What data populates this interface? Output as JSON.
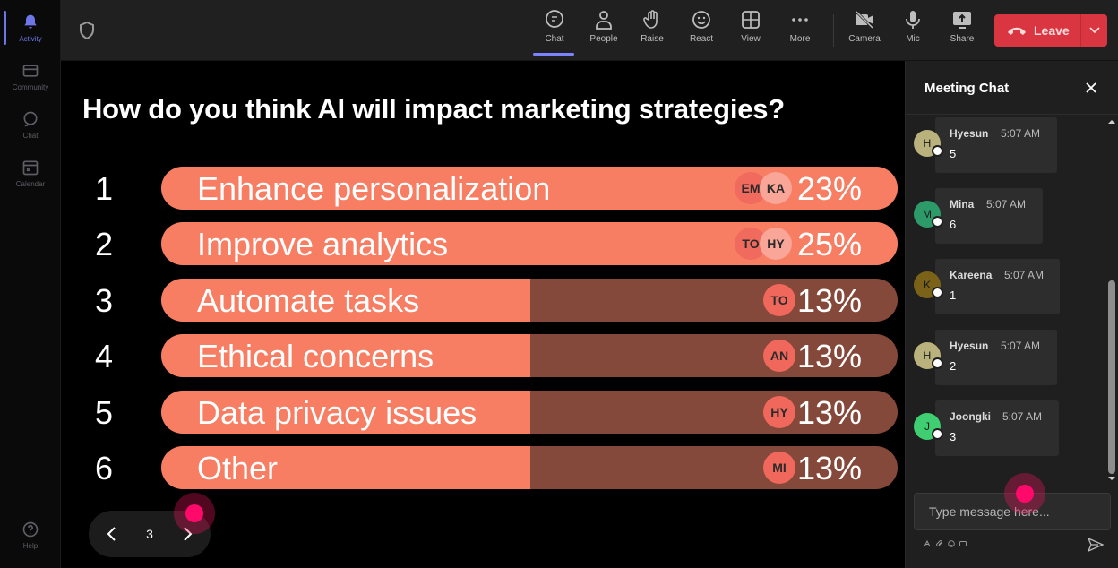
{
  "rail": {
    "items": [
      {
        "label": "Activity",
        "icon": "bell-icon"
      },
      {
        "label": "Community",
        "icon": "community-icon"
      },
      {
        "label": "Chat",
        "icon": "chat-icon"
      },
      {
        "label": "Calendar",
        "icon": "calendar-icon"
      }
    ],
    "help": "Help"
  },
  "toolbar": {
    "chat": "Chat",
    "people": "People",
    "raise": "Raise",
    "react": "React",
    "view": "View",
    "more": "More",
    "camera": "Camera",
    "mic": "Mic",
    "share": "Share",
    "leave": "Leave"
  },
  "poll": {
    "question": "How do you think AI will impact marketing strategies?",
    "options": [
      {
        "num": "1",
        "label": "Enhance personalization",
        "percent": "23%",
        "avatars": [
          "EM",
          "KA"
        ]
      },
      {
        "num": "2",
        "label": "Improve analytics",
        "percent": "25%",
        "avatars": [
          "TO",
          "HY"
        ]
      },
      {
        "num": "3",
        "label": "Automate tasks",
        "percent": "13%",
        "avatars": [
          "TO"
        ]
      },
      {
        "num": "4",
        "label": "Ethical concerns",
        "percent": "13%",
        "avatars": [
          "AN"
        ]
      },
      {
        "num": "5",
        "label": "Data privacy issues",
        "percent": "13%",
        "avatars": [
          "HY"
        ]
      },
      {
        "num": "6",
        "label": "Other",
        "percent": "13%",
        "avatars": [
          "MI"
        ]
      }
    ],
    "page": "3"
  },
  "chat": {
    "title": "Meeting Chat",
    "messages": [
      {
        "initial": "H",
        "name": "Hyesun",
        "time": "5:07 AM",
        "text": "5",
        "color": "#b9b27c"
      },
      {
        "initial": "M",
        "name": "Mina",
        "time": "5:07 AM",
        "text": "6",
        "color": "#2d9a6a"
      },
      {
        "initial": "K",
        "name": "Kareena",
        "time": "5:07 AM",
        "text": "1",
        "color": "#7a6218"
      },
      {
        "initial": "H",
        "name": "Hyesun",
        "time": "5:07 AM",
        "text": "2",
        "color": "#b9b27c"
      },
      {
        "initial": "J",
        "name": "Joongki",
        "time": "5:07 AM",
        "text": "3",
        "color": "#3fcf72"
      }
    ],
    "placeholder": "Type message here..."
  }
}
